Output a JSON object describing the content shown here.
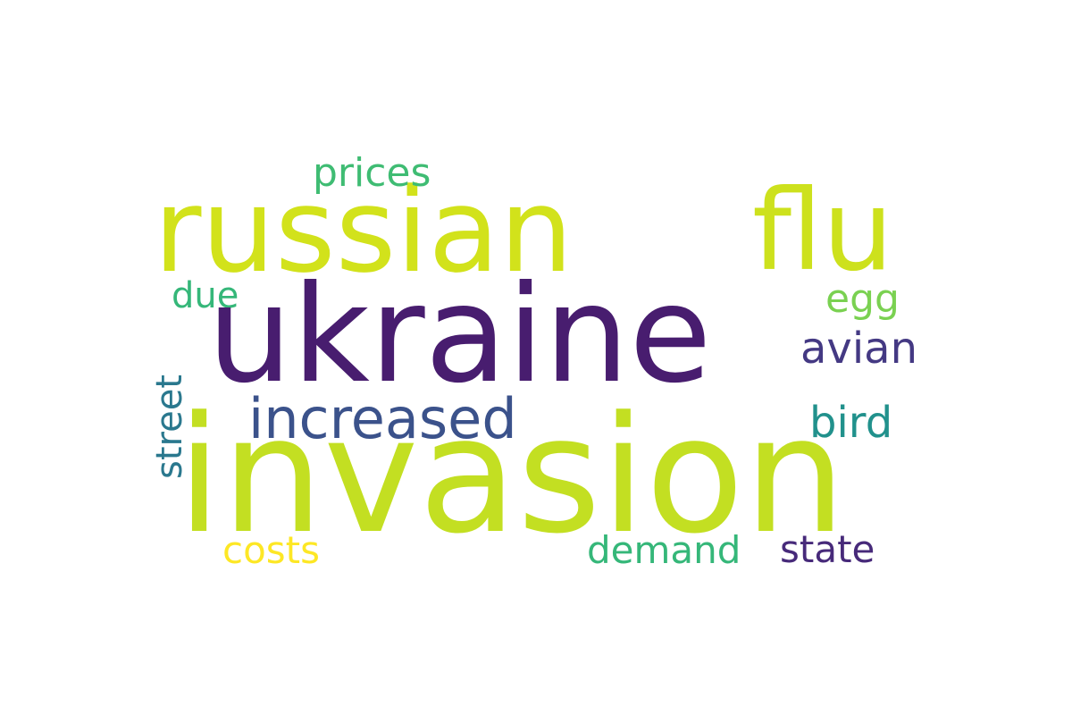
{
  "words": [
    {
      "id": "ukraine",
      "text": "ukraine",
      "color": "#481d6f",
      "orientation": "horizontal"
    },
    {
      "id": "invasion",
      "text": "invasion",
      "color": "#c3df22",
      "orientation": "horizontal"
    },
    {
      "id": "russian",
      "text": "russian",
      "color": "#d2e21b",
      "orientation": "horizontal"
    },
    {
      "id": "flu",
      "text": "flu",
      "color": "#cde11d",
      "orientation": "horizontal"
    },
    {
      "id": "increased",
      "text": "increased",
      "color": "#3b528b",
      "orientation": "horizontal"
    },
    {
      "id": "prices",
      "text": "prices",
      "color": "#3fbc73",
      "orientation": "horizontal"
    },
    {
      "id": "egg",
      "text": "egg",
      "color": "#7ad151",
      "orientation": "horizontal"
    },
    {
      "id": "avian",
      "text": "avian",
      "color": "#443983",
      "orientation": "horizontal"
    },
    {
      "id": "bird",
      "text": "bird",
      "color": "#21918c",
      "orientation": "horizontal"
    },
    {
      "id": "due",
      "text": "due",
      "color": "#35b779",
      "orientation": "horizontal"
    },
    {
      "id": "costs",
      "text": "costs",
      "color": "#fde725",
      "orientation": "horizontal"
    },
    {
      "id": "demand",
      "text": "demand",
      "color": "#35b779",
      "orientation": "horizontal"
    },
    {
      "id": "state",
      "text": "state",
      "color": "#472a7a",
      "orientation": "horizontal"
    },
    {
      "id": "street",
      "text": "street",
      "color": "#2a788e",
      "orientation": "vertical"
    }
  ]
}
